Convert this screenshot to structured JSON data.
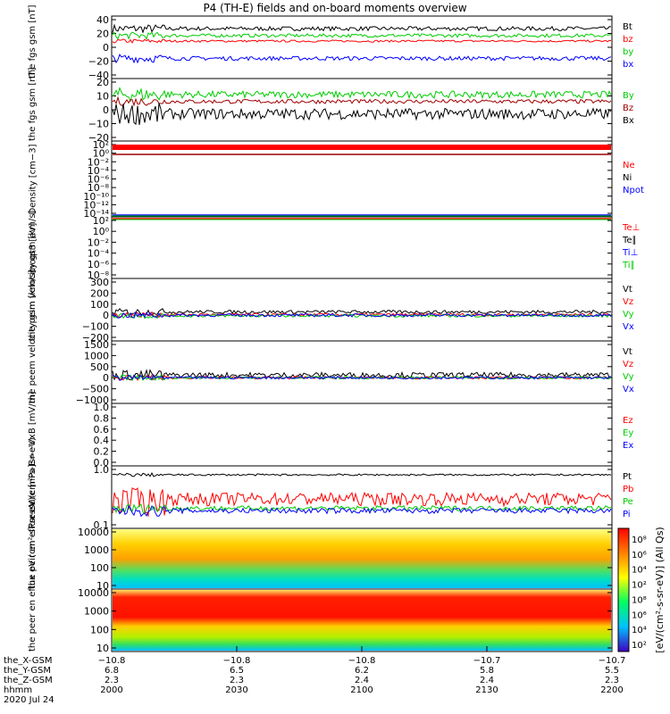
{
  "title": "P4 (TH-E) fields and on-board moments overview",
  "panels": [
    {
      "id": "fgs_gsm_nt_1",
      "ylabel": "the\nfgs\ngsm\n[nT]",
      "yticks": [
        "40",
        "20",
        "0",
        "−20",
        "−40"
      ],
      "ylim": [
        -40,
        40
      ],
      "legend": [
        {
          "label": "Bt",
          "color": "#000000"
        },
        {
          "label": "bz",
          "color": "#ff0000"
        },
        {
          "label": "by",
          "color": "#00cc00"
        },
        {
          "label": "bx",
          "color": "#0000ff"
        }
      ],
      "series": [
        {
          "color": "#000000",
          "base": 27,
          "noise": 3
        },
        {
          "color": "#ff0000",
          "base": 9,
          "noise": 1.5
        },
        {
          "color": "#00cc00",
          "base": 17,
          "noise": 2.5
        },
        {
          "color": "#0000ff",
          "base": -16,
          "noise": 3
        }
      ]
    },
    {
      "id": "fgs_gsm_nt_2",
      "ylabel": "the\nfgs\ngsm\n[nT]",
      "yticks": [
        "20",
        "10",
        "0",
        "−10",
        "−20"
      ],
      "ylim": [
        -20,
        20
      ],
      "legend": [
        {
          "label": "By",
          "color": "#00cc00"
        },
        {
          "label": "Bz",
          "color": "#a00000"
        },
        {
          "label": "Bx",
          "color": "#000000"
        }
      ],
      "series": [
        {
          "color": "#00cc00",
          "base": 11,
          "noise": 2.5
        },
        {
          "color": "#a00000",
          "base": 6,
          "noise": 1.5
        },
        {
          "color": "#000000",
          "base": -3,
          "noise": 4
        }
      ]
    },
    {
      "id": "density",
      "ylabel": "Density\n[cm−3]",
      "yticks": [
        "10²",
        "10⁰",
        "10⁻²",
        "10⁻⁴",
        "10⁻⁶",
        "10⁻⁸",
        "10⁻¹⁰",
        "10⁻¹²",
        "10⁻¹⁴"
      ],
      "legend": [
        {
          "label": "Ne",
          "color": "#ff0000"
        },
        {
          "label": "Ni",
          "color": "#000000"
        },
        {
          "label": "Npot",
          "color": "#0000ff"
        }
      ],
      "series": []
    },
    {
      "id": "temp",
      "ylabel": "moqt3\n[eV]",
      "yticks": [
        "10²",
        "10⁰",
        "10⁻²",
        "10⁻⁴",
        "10⁻⁶",
        "10⁻⁸"
      ],
      "legend": [
        {
          "label": "Te⊥",
          "color": "#ff0000"
        },
        {
          "label": "Te∥",
          "color": "#000000"
        },
        {
          "label": "Ti⊥",
          "color": "#0000ff"
        },
        {
          "label": "Ti∥",
          "color": "#00cc00"
        }
      ],
      "series": []
    },
    {
      "id": "peim_velocity",
      "ylabel": "the\npeim\nvelocity\ngsm\n[km/s]",
      "yticks": [
        "300",
        "200",
        "100",
        "0",
        "−100",
        "−200"
      ],
      "ylim": [
        -200,
        300
      ],
      "legend": [
        {
          "label": "Vt",
          "color": "#000000"
        },
        {
          "label": "Vz",
          "color": "#ff0000"
        },
        {
          "label": "Vy",
          "color": "#00cc00"
        },
        {
          "label": "Vx",
          "color": "#0000ff"
        }
      ],
      "series": [
        {
          "color": "#000000",
          "base": 30,
          "noise": 15
        },
        {
          "color": "#ff0000",
          "base": 5,
          "noise": 12
        },
        {
          "color": "#00cc00",
          "base": -5,
          "noise": 12
        },
        {
          "color": "#0000ff",
          "base": 0,
          "noise": 14
        }
      ]
    },
    {
      "id": "peem_velocity",
      "ylabel": "the\npeem\nvelocity\ngsm\n[km/s]",
      "yticks": [
        "1500",
        "1000",
        "500",
        "0",
        "−500",
        "−1000"
      ],
      "ylim": [
        -1000,
        1500
      ],
      "legend": [
        {
          "label": "Vt",
          "color": "#000000"
        },
        {
          "label": "Vz",
          "color": "#ff0000"
        },
        {
          "label": "Vy",
          "color": "#00cc00"
        },
        {
          "label": "Vx",
          "color": "#0000ff"
        }
      ],
      "series": [
        {
          "color": "#000000",
          "base": 120,
          "noise": 120
        },
        {
          "color": "#ff0000",
          "base": 0,
          "noise": 60
        },
        {
          "color": "#00cc00",
          "base": 0,
          "noise": 60
        },
        {
          "color": "#0000ff",
          "base": 0,
          "noise": 60
        }
      ]
    },
    {
      "id": "efield",
      "ylabel": "E=−VxB\n[mV/m]",
      "yticks": [
        "1.0",
        "0.8",
        "0.6",
        "0.4",
        "0.2",
        "0.0"
      ],
      "ylim": [
        0,
        1
      ],
      "legend": [
        {
          "label": "Ez",
          "color": "#ff0000"
        },
        {
          "label": "Ey",
          "color": "#00cc00"
        },
        {
          "label": "Ex",
          "color": "#0000ff"
        }
      ],
      "series": []
    },
    {
      "id": "pressure",
      "ylabel": "Pressure\n[nPa]",
      "yticks": [
        "1.0",
        "0.1"
      ],
      "ylim": [
        0.1,
        1.0
      ],
      "legend": [
        {
          "label": "Pt",
          "color": "#000000"
        },
        {
          "label": "Pb",
          "color": "#ff0000"
        },
        {
          "label": "Pe",
          "color": "#00cc00"
        },
        {
          "label": "Pi",
          "color": "#0000ff"
        }
      ],
      "series": [
        {
          "color": "#000000",
          "base": 0.8,
          "noise": 0.03
        },
        {
          "color": "#ff0000",
          "base": 0.3,
          "noise": 0.08
        },
        {
          "color": "#00cc00",
          "base": 0.2,
          "noise": 0.02
        },
        {
          "color": "#0000ff",
          "base": 0.18,
          "noise": 0.02
        }
      ]
    },
    {
      "id": "peir_eflux",
      "ylabel": "the\npeir\nen\neflux\neV\n(cm²-s-\nsr-eV)",
      "yticks": [
        "10000",
        "1000",
        "100",
        "10"
      ],
      "legend": [],
      "series": [],
      "spectrogram": "ion"
    },
    {
      "id": "peer_eflux",
      "ylabel": "the\npeer\nen\neflux\neV\n(cm²-s-\nsr-eV)",
      "yticks": [
        "10000",
        "1000",
        "100",
        "10"
      ],
      "legend": [],
      "series": [],
      "spectrogram": "electron"
    }
  ],
  "colorbar": {
    "label": "[eV/(cm²-s-sr-eV)] (All Qs)",
    "ticks_upper": [
      "10⁸",
      "10⁶",
      "10⁴",
      "10²"
    ],
    "ticks_lower": [
      "10⁸",
      "10⁶",
      "10⁴",
      "10²"
    ]
  },
  "footer": {
    "row_labels": [
      "the_X-GSM",
      "the_Y-GSM",
      "the_Z-GSM",
      "hhmm",
      "2020 Jul 24"
    ],
    "columns": [
      {
        "x": "−10.8",
        "y": "6.8",
        "z": "2.3",
        "hhmm": "2000"
      },
      {
        "x": "−10.8",
        "y": "6.5",
        "z": "2.3",
        "hhmm": "2030"
      },
      {
        "x": "−10.8",
        "y": "6.2",
        "z": "2.4",
        "hhmm": "2100"
      },
      {
        "x": "−10.7",
        "y": "5.8",
        "z": "2.4",
        "hhmm": "2130"
      },
      {
        "x": "−10.7",
        "y": "5.5",
        "z": "2.3",
        "hhmm": "2200"
      }
    ]
  },
  "chart_data": {
    "type": "line",
    "title": "P4 (TH-E) fields and on-board moments overview",
    "x": [
      "2000",
      "2030",
      "2100",
      "2130",
      "2200"
    ],
    "xlabel": "hhmm",
    "series": [
      {
        "name": "Bt",
        "values": [
          30,
          28,
          27,
          28,
          27
        ]
      },
      {
        "name": "bz",
        "values": [
          10,
          9,
          9,
          9,
          9
        ]
      },
      {
        "name": "by",
        "values": [
          20,
          17,
          16,
          17,
          18
        ]
      },
      {
        "name": "bx",
        "values": [
          -15,
          -17,
          -18,
          -15,
          -10
        ]
      }
    ],
    "ylabel": "the fgs gsm [nT]",
    "ylim": [
      -40,
      40
    ]
  }
}
